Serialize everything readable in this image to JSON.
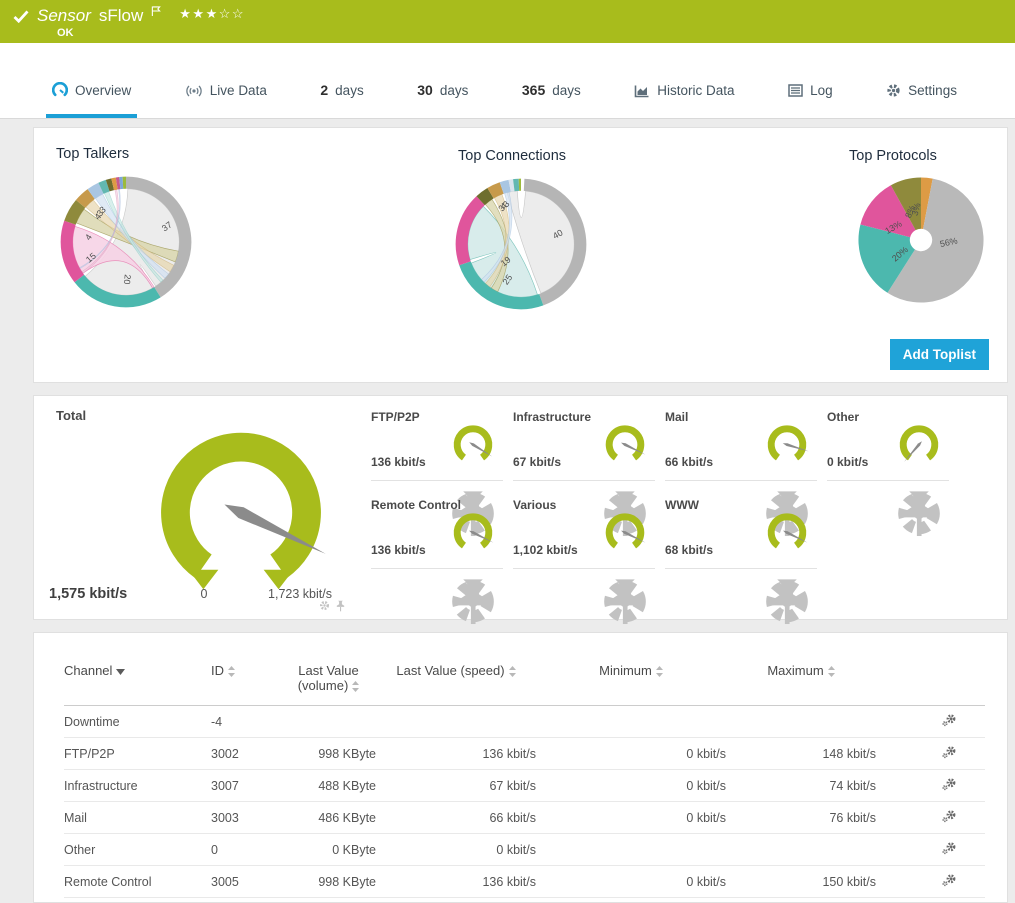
{
  "colors": {
    "brand_green": "#a8bc1c",
    "accent_blue": "#1b9fd6",
    "button_blue": "#1fa3d8",
    "needle_gray": "#8b8b8b"
  },
  "header": {
    "title_prefix": "Sensor",
    "title": "sFlow",
    "status": "OK",
    "stars_filled": "★★★",
    "stars_empty": "☆☆",
    "rating_filled": 3,
    "rating_total": 5
  },
  "tabs": [
    {
      "label": "Overview",
      "icon": "overview",
      "active": true
    },
    {
      "label": "Live Data",
      "icon": "broadcast"
    },
    {
      "num": "2",
      "label": "days"
    },
    {
      "num": "30",
      "label": "days"
    },
    {
      "num": "365",
      "label": "days"
    },
    {
      "label": "Historic Data",
      "icon": "historic"
    },
    {
      "label": "Log",
      "icon": "log"
    },
    {
      "label": "Settings",
      "icon": "gear"
    }
  ],
  "toplists": {
    "add_button": "Add Toplist",
    "panels": [
      {
        "title": "Top Talkers",
        "chart": {
          "type": "chord",
          "segments": [
            {
              "color": "#b5b5b5",
              "a": [
                0,
                148
              ]
            },
            {
              "color": "#4cb8ae",
              "a": [
                148,
                232
              ]
            },
            {
              "color": "#e0559c",
              "a": [
                232,
                289
              ]
            },
            {
              "color": "#8f8a3c",
              "a": [
                289,
                310
              ]
            },
            {
              "color": "#c79a4b",
              "a": [
                310,
                324
              ]
            },
            {
              "color": "#a9c6e2",
              "a": [
                324,
                335
              ]
            },
            {
              "color": "#62b8b1",
              "a": [
                335,
                342
              ]
            },
            {
              "color": "#6e6e2e",
              "a": [
                342,
                347
              ]
            },
            {
              "color": "#dd9b45",
              "a": [
                347,
                351
              ]
            },
            {
              "color": "#c75b8d",
              "a": [
                351,
                354
              ]
            },
            {
              "color": "#7ea7d8",
              "a": [
                354,
                357
              ]
            },
            {
              "color": "#9cba3a",
              "a": [
                357,
                360
              ]
            }
          ],
          "ribbons": [
            {
              "from": [
                2,
                146
              ],
              "to": [
                150,
                230
              ],
              "fill": "#e9e9e9",
              "stroke": "#c4c4c4",
              "op": 0.85
            },
            {
              "from": [
                234,
                287
              ],
              "to": [
                148,
                150
              ],
              "fill": "#f7d3e6",
              "stroke": "#e884b4",
              "op": 0.9
            },
            {
              "from": [
                291,
                308
              ],
              "to": [
                100,
                112
              ],
              "fill": "#dbd8b0",
              "stroke": "#a29d5a",
              "op": 0.85
            },
            {
              "from": [
                311,
                322
              ],
              "to": [
                116,
                124
              ],
              "fill": "#e7d7ae",
              "stroke": "#cfb579",
              "op": 0.7
            },
            {
              "from": [
                325,
                334
              ],
              "to": [
                127,
                133
              ],
              "fill": "#d3e2f2",
              "stroke": "#aac4e0",
              "op": 0.7
            },
            {
              "from": [
                336,
                341
              ],
              "to": [
                136,
                139
              ],
              "fill": "#c6e7e2",
              "stroke": "#8ecec7",
              "op": 0.65
            },
            {
              "from": [
                348,
                350
              ],
              "to": [
                234,
                236
              ],
              "fill": "#f2c8dd",
              "stroke": "#dd9bbd",
              "op": 0.6
            },
            {
              "from": [
                352,
                353
              ],
              "to": [
                240,
                241
              ],
              "fill": "#cdd9ee",
              "stroke": "#a9bedd",
              "op": 0.6
            }
          ],
          "labels": [
            {
              "t": "37",
              "a": 70,
              "r": 47,
              "rot": -35
            },
            {
              "t": "20",
              "a": 179,
              "r": 40,
              "rot": 96
            },
            {
              "t": "15",
              "a": 245,
              "r": 41,
              "rot": -40
            },
            {
              "t": "4",
              "a": 277,
              "r": 40,
              "rot": -55
            },
            {
              "t": "4",
              "a": 312,
              "r": 40,
              "rot": -48
            },
            {
              "t": "3",
              "a": 318,
              "r": 41,
              "rot": -45
            },
            {
              "t": "3",
              "a": 324,
              "r": 42,
              "rot": -42
            }
          ]
        }
      },
      {
        "title": "Top Connections",
        "chart": {
          "type": "chord",
          "segments": [
            {
              "color": "#b5b5b5",
              "a": [
                3,
                160
              ]
            },
            {
              "color": "#4cb8ae",
              "a": [
                160,
                251
              ]
            },
            {
              "color": "#e0559c",
              "a": [
                251,
                317
              ]
            },
            {
              "color": "#6e6e2e",
              "a": [
                317,
                329
              ]
            },
            {
              "color": "#c79a4b",
              "a": [
                329,
                341
              ]
            },
            {
              "color": "#a9c6e2",
              "a": [
                341,
                349
              ]
            },
            {
              "color": "#d9e4ee",
              "a": [
                349,
                353
              ]
            },
            {
              "color": "#62b8b1",
              "a": [
                353,
                358
              ]
            },
            {
              "color": "#9cba3a",
              "a": [
                358,
                360
              ]
            }
          ],
          "ribbons": [
            {
              "from": [
                5,
                158
              ],
              "to": [
                345,
                356
              ],
              "fill": "#ebebeb",
              "stroke": "#c2c2c2",
              "op": 0.9
            },
            {
              "from": [
                162,
                249
              ],
              "to": [
                253,
                315
              ],
              "fill": "#d6ecea",
              "stroke": "#7cc4bc",
              "op": 0.95
            },
            {
              "from": [
                318,
                327
              ],
              "to": [
                206,
                214
              ],
              "fill": "#dbd8b0",
              "stroke": "#a29d5a",
              "op": 0.8
            },
            {
              "from": [
                330,
                339
              ],
              "to": [
                216,
                222
              ],
              "fill": "#e7d7ae",
              "stroke": "#cfb579",
              "op": 0.7
            },
            {
              "from": [
                342,
                347
              ],
              "to": [
                224,
                228
              ],
              "fill": "#d3e2f2",
              "stroke": "#aac4e0",
              "op": 0.7
            }
          ],
          "labels": [
            {
              "t": "40",
              "a": 76,
              "r": 41,
              "rot": -30
            },
            {
              "t": "19",
              "a": 220,
              "r": 25,
              "rot": -38
            },
            {
              "t": "25",
              "a": 200,
              "r": 41,
              "rot": -55
            },
            {
              "t": "3",
              "a": 332,
              "r": 43,
              "rot": -50
            },
            {
              "t": "4",
              "a": 336,
              "r": 44,
              "rot": -50
            },
            {
              "t": "3",
              "a": 340,
              "r": 45,
              "rot": -50
            }
          ]
        }
      },
      {
        "title": "Top Protocols",
        "chart": {
          "type": "pie",
          "hole": 12,
          "slices": [
            {
              "label": "3%",
              "pct": 3,
              "color": "#dd9b45"
            },
            {
              "label": "56%",
              "pct": 56,
              "color": "#b9b9b9"
            },
            {
              "label": "20%",
              "pct": 20,
              "color": "#4cb8ae"
            },
            {
              "label": "13%",
              "pct": 13,
              "color": "#e0559c"
            },
            {
              "label": "8%",
              "pct": 8,
              "color": "#8f8a3c"
            }
          ],
          "labels": [
            {
              "t": "56%",
              "a": 96,
              "r": 30,
              "rot": -12
            },
            {
              "t": "20%",
              "a": 235,
              "r": 27,
              "rot": -40
            },
            {
              "t": "13%",
              "a": 294,
              "r": 32,
              "rot": -30
            },
            {
              "t": "8%",
              "a": 340,
              "r": 32,
              "rot": -65
            },
            {
              "t": "3%",
              "a": 352,
              "r": 33,
              "rot": -75
            }
          ]
        }
      }
    ]
  },
  "gauges": {
    "total": {
      "label": "Total",
      "value": "1,575 kbit/s",
      "min": "0",
      "max": "1,723 kbit/s",
      "chart": {
        "type": "gauge",
        "frac": 0.9,
        "arrows": true
      }
    },
    "channels": [
      {
        "name": "FTP/P2P",
        "value": "136 kbit/s",
        "chart": {
          "type": "gauge",
          "frac": 0.92
        }
      },
      {
        "name": "Infrastructure",
        "value": "67 kbit/s",
        "chart": {
          "type": "gauge",
          "frac": 0.9
        }
      },
      {
        "name": "Mail",
        "value": "66 kbit/s",
        "chart": {
          "type": "gauge",
          "frac": 0.87
        }
      },
      {
        "name": "Other",
        "value": "0 kbit/s",
        "chart": {
          "type": "gauge",
          "frac": 0.02
        }
      },
      {
        "name": "Remote Control",
        "value": "136 kbit/s",
        "chart": {
          "type": "gauge",
          "frac": 0.9
        }
      },
      {
        "name": "Various",
        "value": "1,102 kbit/s",
        "chart": {
          "type": "gauge",
          "frac": 0.9
        }
      },
      {
        "name": "WWW",
        "value": "68 kbit/s",
        "chart": {
          "type": "gauge",
          "frac": 0.9
        }
      }
    ]
  },
  "table": {
    "columns": [
      {
        "label": "Channel",
        "sort": "active"
      },
      {
        "label": "ID",
        "sort": "both"
      },
      {
        "label": "Last Value (volume)",
        "sort": "both"
      },
      {
        "label": "Last Value (speed)",
        "sort": "both"
      },
      {
        "label": "Minimum",
        "sort": "both"
      },
      {
        "label": "Maximum",
        "sort": "both"
      },
      {
        "label": "",
        "sort": "none"
      }
    ],
    "rows": [
      [
        "Downtime",
        "-4",
        "",
        "",
        "",
        ""
      ],
      [
        "FTP/P2P",
        "3002",
        "998 KByte",
        "136 kbit/s",
        "0 kbit/s",
        "148 kbit/s"
      ],
      [
        "Infrastructure",
        "3007",
        "488 KByte",
        "67 kbit/s",
        "0 kbit/s",
        "74 kbit/s"
      ],
      [
        "Mail",
        "3003",
        "486 KByte",
        "66 kbit/s",
        "0 kbit/s",
        "76 kbit/s"
      ],
      [
        "Other",
        "0",
        "0 KByte",
        "0 kbit/s",
        "",
        ""
      ],
      [
        "Remote Control",
        "3005",
        "998 KByte",
        "136 kbit/s",
        "0 kbit/s",
        "150 kbit/s"
      ]
    ]
  }
}
